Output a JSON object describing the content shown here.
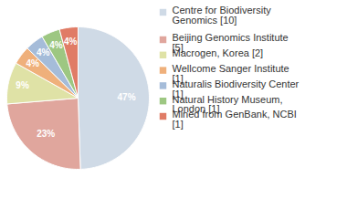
{
  "chart_data": {
    "type": "pie",
    "categories": [
      "Centre for Biodiversity Genomics [10]",
      "Beijing Genomics Institute [5]",
      "Macrogen, Korea [2]",
      "Wellcome Sanger Institute [1]",
      "Naturalis Biodiversity Center [1]",
      "Natural History Museum, London [1]",
      "Mined from GenBank, NCBI [1]"
    ],
    "values": [
      47,
      23,
      9,
      4,
      4,
      4,
      4
    ],
    "value_labels": [
      "47%",
      "23%",
      "9%",
      "4%",
      "4%",
      "4%",
      "4%"
    ],
    "colors": [
      "#cfdae6",
      "#e0a69d",
      "#dfe2a6",
      "#efb07b",
      "#a5bcd9",
      "#9dc782",
      "#e07c66"
    ],
    "data_labels": true,
    "legend": "right"
  }
}
